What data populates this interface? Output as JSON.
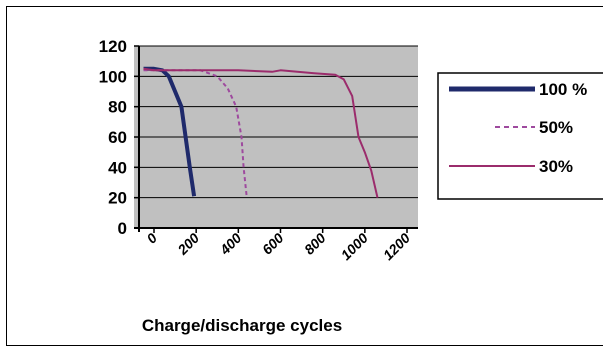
{
  "chart_data": {
    "type": "line",
    "title": "",
    "xlabel": "Charge/discharge cycles",
    "ylabel": "",
    "xlim": [
      -50,
      1200
    ],
    "ylim": [
      0,
      120
    ],
    "x_ticks": [
      "0",
      "200",
      "400",
      "600",
      "800",
      "1000",
      "1200"
    ],
    "x_tick_values": [
      0,
      200,
      400,
      600,
      800,
      1000,
      1200
    ],
    "y_ticks": [
      "0",
      "20",
      "40",
      "60",
      "80",
      "100",
      "120"
    ],
    "y_tick_values": [
      0,
      20,
      40,
      60,
      80,
      100,
      120
    ],
    "grid": true,
    "plot_background": "#c0c0c0",
    "legend_position": "right",
    "series": [
      {
        "name": "100 %",
        "color": "#1f2a6b",
        "style": "solid-thick",
        "points": [
          [
            -50,
            105
          ],
          [
            0,
            105
          ],
          [
            40,
            104
          ],
          [
            70,
            100
          ],
          [
            100,
            90
          ],
          [
            130,
            80
          ],
          [
            150,
            60
          ],
          [
            170,
            40
          ],
          [
            190,
            21
          ]
        ]
      },
      {
        "name": "50%",
        "color": "#9e4a9e",
        "style": "dashed",
        "points": [
          [
            -50,
            104
          ],
          [
            0,
            104
          ],
          [
            100,
            104
          ],
          [
            220,
            104
          ],
          [
            300,
            100
          ],
          [
            350,
            92
          ],
          [
            390,
            80
          ],
          [
            415,
            60
          ],
          [
            425,
            40
          ],
          [
            440,
            20
          ]
        ]
      },
      {
        "name": "30%",
        "color": "#9b2c6c",
        "style": "solid",
        "points": [
          [
            -50,
            105
          ],
          [
            0,
            104
          ],
          [
            150,
            104
          ],
          [
            400,
            104
          ],
          [
            560,
            103
          ],
          [
            600,
            104
          ],
          [
            760,
            102
          ],
          [
            860,
            101
          ],
          [
            900,
            98
          ],
          [
            940,
            87
          ],
          [
            970,
            60
          ],
          [
            1000,
            50
          ],
          [
            1030,
            38
          ],
          [
            1060,
            20
          ]
        ]
      }
    ]
  }
}
